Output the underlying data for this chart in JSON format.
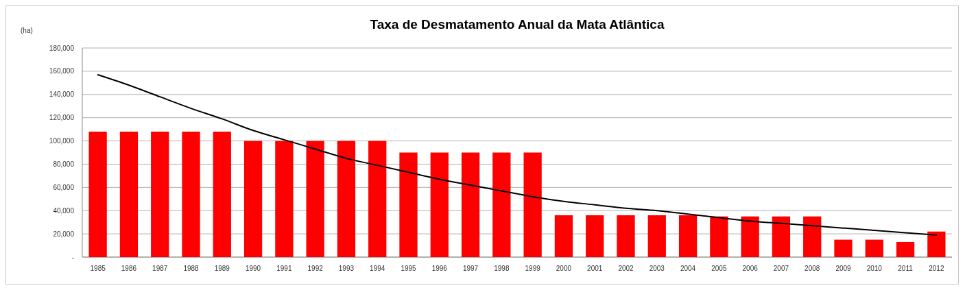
{
  "chart_data": {
    "type": "bar",
    "title": "Taxa de Desmatamento Anual da Mata Atlântica",
    "ylabel": "(ha)",
    "categories": [
      "1985",
      "1986",
      "1987",
      "1988",
      "1989",
      "1990",
      "1991",
      "1992",
      "1993",
      "1994",
      "1995",
      "1996",
      "1997",
      "1998",
      "1999",
      "2000",
      "2001",
      "2002",
      "2003",
      "2004",
      "2005",
      "2006",
      "2007",
      "2008",
      "2009",
      "2010",
      "2011",
      "2012"
    ],
    "series": [
      {
        "color": "#ff0000",
        "values": [
          108000,
          108000,
          108000,
          108000,
          108000,
          100000,
          100000,
          100000,
          100000,
          100000,
          90000,
          90000,
          90000,
          90000,
          90000,
          36000,
          36000,
          36000,
          36000,
          36000,
          35000,
          35000,
          35000,
          35000,
          15000,
          15000,
          13000,
          22000
        ]
      },
      {
        "type": "line",
        "color": "#000000",
        "values": [
          157000,
          148000,
          138000,
          128000,
          119000,
          109000,
          101000,
          93000,
          85000,
          79000,
          73000,
          67000,
          62000,
          57000,
          52000,
          48000,
          45000,
          42000,
          40000,
          37000,
          34000,
          31000,
          29000,
          27000,
          25000,
          23000,
          21000,
          19000
        ]
      }
    ],
    "ylim": [
      0,
      180000
    ],
    "yticks": [
      {
        "value": 0,
        "label": "-"
      },
      {
        "value": 20000,
        "label": "20,000"
      },
      {
        "value": 40000,
        "label": "40,000"
      },
      {
        "value": 60000,
        "label": "60,000"
      },
      {
        "value": 80000,
        "label": "80,000"
      },
      {
        "value": 100000,
        "label": "100,000"
      },
      {
        "value": 120000,
        "label": "120,000"
      },
      {
        "value": 140000,
        "label": "140,000"
      },
      {
        "value": 160000,
        "label": "160,000"
      },
      {
        "value": 180000,
        "label": "180,000"
      }
    ],
    "grid": "y",
    "marker": "none",
    "line_style": "solid"
  }
}
